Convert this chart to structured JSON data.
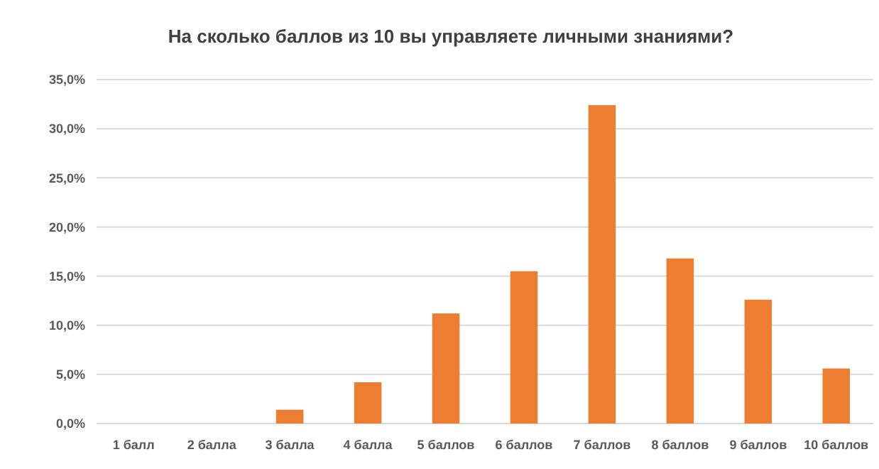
{
  "chart_data": {
    "type": "bar",
    "title": "На сколько баллов из 10 вы управляете личными знаниями?",
    "categories": [
      "1 балл",
      "2 балла",
      "3 балла",
      "4 балла",
      "5 баллов",
      "6 баллов",
      "7 баллов",
      "8 баллов",
      "9 баллов",
      "10 баллов"
    ],
    "values": [
      0,
      0,
      1.4,
      4.2,
      11.2,
      15.5,
      32.4,
      16.8,
      12.6,
      5.6
    ],
    "color": "#ed7d31",
    "ylim": [
      0,
      35
    ],
    "yticks": [
      {
        "value": 0,
        "label": "0,0%"
      },
      {
        "value": 5,
        "label": "5,0%"
      },
      {
        "value": 10,
        "label": "10,0%"
      },
      {
        "value": 15,
        "label": "15,0%"
      },
      {
        "value": 20,
        "label": "20,0%"
      },
      {
        "value": 25,
        "label": "25,0%"
      },
      {
        "value": 30,
        "label": "30,0%"
      },
      {
        "value": 35,
        "label": "35,0%"
      }
    ],
    "grid": "y"
  }
}
